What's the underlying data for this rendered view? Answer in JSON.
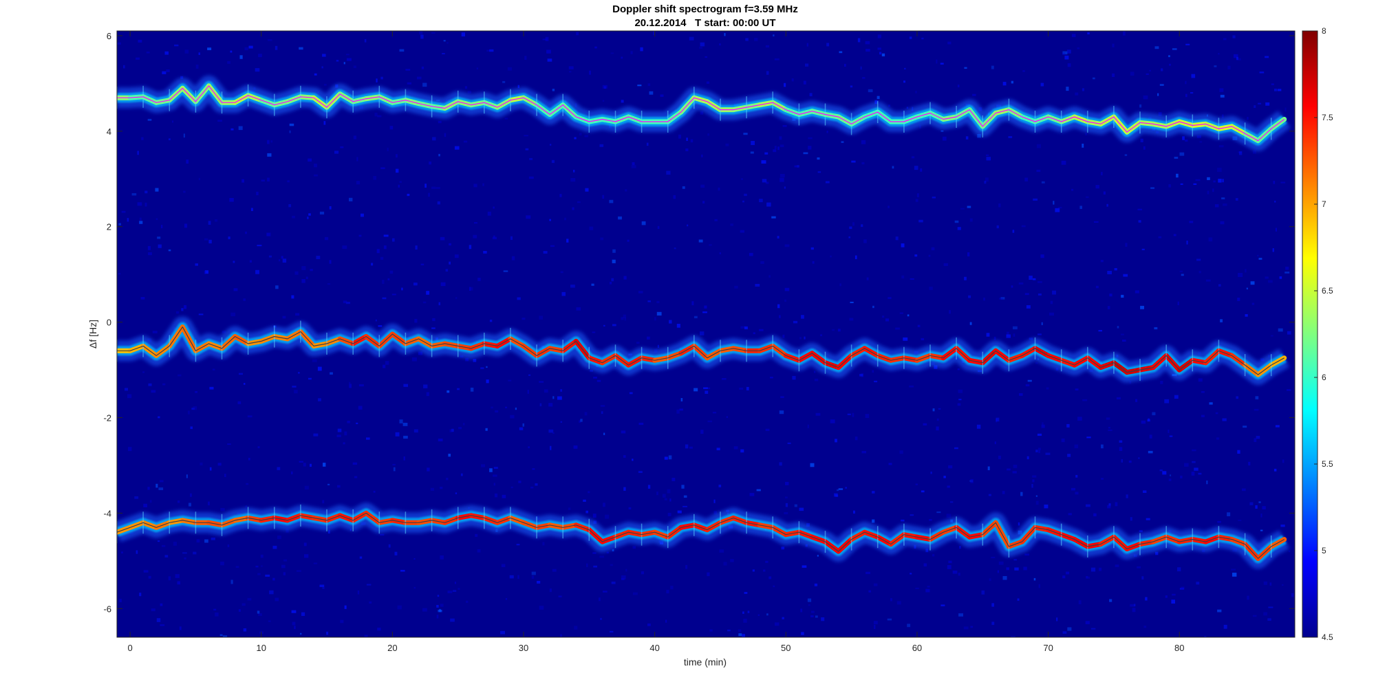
{
  "chart_data": {
    "type": "heatmap",
    "title": "Doppler shift spectrogram f=3.59 MHz",
    "subtitle": "20.12.2014   T start: 00:00 UT",
    "xlabel": "time (min)",
    "ylabel": "Δf [Hz]",
    "xlim": [
      -1,
      88.8
    ],
    "ylim": [
      -6.6,
      6.1
    ],
    "xticks": [
      0,
      10,
      20,
      30,
      40,
      50,
      60,
      70,
      80
    ],
    "xtick_labels": [
      "0",
      "10",
      "20",
      "30",
      "40",
      "50",
      "60",
      "70",
      "80"
    ],
    "yticks": [
      -6,
      -4,
      -2,
      0,
      2,
      4,
      6
    ],
    "ytick_labels": [
      "-6",
      "-4",
      "-2",
      "0",
      "2",
      "4",
      "6"
    ],
    "colorbar": {
      "range": [
        4.5,
        8
      ],
      "ticks": [
        4.5,
        5,
        5.5,
        6,
        6.5,
        7,
        7.5,
        8
      ],
      "tick_labels": [
        "4.5",
        "5",
        "5.5",
        "6",
        "6.5",
        "7",
        "7.5",
        "8"
      ],
      "colormap": "jet",
      "placement": "right"
    },
    "background_color": "#00008f",
    "traces": [
      {
        "band": "upper",
        "color": "#ff00ff",
        "x": [
          -1,
          0,
          1,
          2,
          3,
          4,
          5,
          6,
          7,
          8,
          9,
          10,
          11,
          12,
          13,
          14,
          15,
          16,
          17,
          18,
          19,
          20,
          21,
          22,
          23,
          24,
          25,
          26,
          27,
          28,
          29,
          30,
          31,
          32,
          33,
          34,
          35,
          36,
          37,
          38,
          39,
          40,
          41,
          42,
          43,
          44,
          45,
          46,
          47,
          48,
          49,
          50,
          51,
          52,
          53,
          54,
          55,
          56,
          57,
          58,
          59,
          60,
          61,
          62,
          63,
          64,
          65,
          66,
          67,
          68,
          69,
          70,
          71,
          72,
          73,
          74,
          75,
          76,
          77,
          78,
          79,
          80,
          81,
          82,
          83,
          84,
          85,
          86,
          87,
          88
        ],
        "y": [
          4.7,
          4.7,
          4.72,
          4.6,
          4.65,
          4.9,
          4.62,
          4.95,
          4.6,
          4.6,
          4.75,
          4.65,
          4.55,
          4.62,
          4.72,
          4.7,
          4.5,
          4.78,
          4.62,
          4.68,
          4.72,
          4.6,
          4.65,
          4.58,
          4.52,
          4.48,
          4.62,
          4.55,
          4.6,
          4.5,
          4.65,
          4.7,
          4.55,
          4.35,
          4.55,
          4.3,
          4.2,
          4.25,
          4.2,
          4.3,
          4.2,
          4.2,
          4.2,
          4.4,
          4.7,
          4.62,
          4.45,
          4.45,
          4.5,
          4.55,
          4.6,
          4.45,
          4.35,
          4.42,
          4.35,
          4.3,
          4.15,
          4.3,
          4.4,
          4.2,
          4.2,
          4.3,
          4.38,
          4.25,
          4.3,
          4.45,
          4.1,
          4.38,
          4.45,
          4.3,
          4.2,
          4.3,
          4.2,
          4.3,
          4.2,
          4.15,
          4.3,
          3.98,
          4.18,
          4.15,
          4.1,
          4.2,
          4.12,
          4.15,
          4.05,
          4.1,
          3.95,
          3.8,
          4.05,
          4.25
        ],
        "intensity": [
          6.4,
          6.2,
          6.0,
          6.3,
          6.1,
          6.5,
          6.2,
          6.3,
          6.4,
          6.3,
          6.6,
          6.2,
          6.1,
          6.3,
          6.2,
          6.4,
          6.5,
          6.3,
          6.2,
          6.2,
          6.4,
          6.1,
          6.2,
          6.3,
          6.1,
          6.2,
          6.4,
          6.2,
          6.3,
          6.1,
          6.5,
          6.4,
          6.2,
          6.0,
          6.2,
          6.1,
          6.0,
          6.1,
          6.0,
          6.2,
          6.0,
          6.1,
          6.0,
          6.2,
          6.3,
          6.5,
          6.3,
          6.4,
          6.2,
          6.3,
          6.5,
          6.2,
          6.0,
          6.2,
          6.1,
          6.2,
          6.2,
          6.1,
          6.0,
          6.1,
          6.0,
          6.1,
          6.0,
          6.2,
          6.3,
          6.1,
          6.2,
          6.3,
          6.4,
          6.1,
          6.0,
          6.2,
          6.2,
          6.4,
          6.5,
          6.3,
          6.6,
          6.4,
          6.5,
          6.3,
          6.5,
          6.4,
          6.6,
          6.5,
          6.4,
          6.7,
          6.3,
          6.2,
          6.1,
          6.3
        ]
      },
      {
        "band": "middle",
        "color": "#404040",
        "x": [
          -1,
          0,
          1,
          2,
          3,
          4,
          5,
          6,
          7,
          8,
          9,
          10,
          11,
          12,
          13,
          14,
          15,
          16,
          17,
          18,
          19,
          20,
          21,
          22,
          23,
          24,
          25,
          26,
          27,
          28,
          29,
          30,
          31,
          32,
          33,
          34,
          35,
          36,
          37,
          38,
          39,
          40,
          41,
          42,
          43,
          44,
          45,
          46,
          47,
          48,
          49,
          50,
          51,
          52,
          53,
          54,
          55,
          56,
          57,
          58,
          59,
          60,
          61,
          62,
          63,
          64,
          65,
          66,
          67,
          68,
          69,
          70,
          71,
          72,
          73,
          74,
          75,
          76,
          77,
          78,
          79,
          80,
          81,
          82,
          83,
          84,
          85,
          86,
          87,
          88
        ],
        "y": [
          -0.6,
          -0.6,
          -0.5,
          -0.7,
          -0.5,
          -0.1,
          -0.6,
          -0.45,
          -0.55,
          -0.3,
          -0.45,
          -0.4,
          -0.3,
          -0.35,
          -0.2,
          -0.5,
          -0.45,
          -0.35,
          -0.45,
          -0.3,
          -0.5,
          -0.25,
          -0.45,
          -0.35,
          -0.5,
          -0.45,
          -0.5,
          -0.55,
          -0.45,
          -0.5,
          -0.35,
          -0.5,
          -0.7,
          -0.55,
          -0.6,
          -0.4,
          -0.75,
          -0.85,
          -0.7,
          -0.9,
          -0.75,
          -0.8,
          -0.75,
          -0.65,
          -0.5,
          -0.75,
          -0.6,
          -0.55,
          -0.6,
          -0.6,
          -0.5,
          -0.7,
          -0.8,
          -0.65,
          -0.85,
          -0.95,
          -0.7,
          -0.55,
          -0.7,
          -0.8,
          -0.75,
          -0.8,
          -0.7,
          -0.75,
          -0.55,
          -0.8,
          -0.85,
          -0.6,
          -0.8,
          -0.7,
          -0.55,
          -0.7,
          -0.8,
          -0.9,
          -0.75,
          -0.95,
          -0.85,
          -1.05,
          -1.0,
          -0.95,
          -0.7,
          -1.0,
          -0.8,
          -0.85,
          -0.6,
          -0.7,
          -0.9,
          -1.1,
          -0.9,
          -0.75
        ],
        "intensity": [
          6.8,
          7.0,
          6.9,
          7.2,
          7.0,
          7.3,
          7.1,
          7.2,
          7.0,
          7.4,
          7.1,
          7.0,
          7.2,
          7.0,
          7.3,
          7.1,
          7.0,
          7.2,
          7.4,
          7.6,
          7.2,
          7.5,
          7.2,
          7.3,
          7.1,
          7.4,
          7.2,
          7.5,
          7.3,
          7.7,
          7.4,
          7.2,
          7.5,
          7.3,
          7.4,
          7.6,
          7.7,
          7.3,
          7.5,
          7.4,
          7.6,
          7.3,
          7.2,
          7.4,
          7.5,
          7.2,
          7.3,
          7.2,
          7.4,
          7.5,
          7.3,
          7.4,
          7.6,
          7.5,
          7.7,
          7.6,
          7.5,
          7.4,
          7.6,
          7.3,
          7.5,
          7.4,
          7.3,
          7.5,
          7.6,
          7.4,
          7.7,
          7.6,
          7.5,
          7.4,
          7.6,
          7.7,
          7.4,
          7.6,
          7.5,
          7.6,
          7.7,
          7.8,
          7.6,
          7.7,
          7.5,
          7.8,
          7.6,
          7.5,
          7.4,
          7.6,
          7.2,
          7.1,
          7.0,
          6.9
        ]
      },
      {
        "band": "lower",
        "color": "#404040",
        "x": [
          -1,
          0,
          1,
          2,
          3,
          4,
          5,
          6,
          7,
          8,
          9,
          10,
          11,
          12,
          13,
          14,
          15,
          16,
          17,
          18,
          19,
          20,
          21,
          22,
          23,
          24,
          25,
          26,
          27,
          28,
          29,
          30,
          31,
          32,
          33,
          34,
          35,
          36,
          37,
          38,
          39,
          40,
          41,
          42,
          43,
          44,
          45,
          46,
          47,
          48,
          49,
          50,
          51,
          52,
          53,
          54,
          55,
          56,
          57,
          58,
          59,
          60,
          61,
          62,
          63,
          64,
          65,
          66,
          67,
          68,
          69,
          70,
          71,
          72,
          73,
          74,
          75,
          76,
          77,
          78,
          79,
          80,
          81,
          82,
          83,
          84,
          85,
          86,
          87,
          88
        ],
        "y": [
          -4.4,
          -4.3,
          -4.2,
          -4.3,
          -4.2,
          -4.15,
          -4.2,
          -4.2,
          -4.25,
          -4.15,
          -4.1,
          -4.15,
          -4.1,
          -4.15,
          -4.05,
          -4.1,
          -4.15,
          -4.05,
          -4.15,
          -4.0,
          -4.2,
          -4.15,
          -4.2,
          -4.2,
          -4.15,
          -4.2,
          -4.1,
          -4.05,
          -4.1,
          -4.2,
          -4.1,
          -4.2,
          -4.3,
          -4.25,
          -4.3,
          -4.25,
          -4.35,
          -4.6,
          -4.5,
          -4.4,
          -4.45,
          -4.4,
          -4.5,
          -4.3,
          -4.25,
          -4.35,
          -4.2,
          -4.1,
          -4.2,
          -4.25,
          -4.3,
          -4.45,
          -4.4,
          -4.5,
          -4.6,
          -4.8,
          -4.55,
          -4.4,
          -4.5,
          -4.65,
          -4.45,
          -4.5,
          -4.55,
          -4.4,
          -4.3,
          -4.5,
          -4.45,
          -4.2,
          -4.7,
          -4.6,
          -4.3,
          -4.35,
          -4.45,
          -4.55,
          -4.7,
          -4.65,
          -4.5,
          -4.75,
          -4.65,
          -4.6,
          -4.5,
          -4.6,
          -4.55,
          -4.6,
          -4.5,
          -4.55,
          -4.65,
          -4.95,
          -4.7,
          -4.55
        ],
        "intensity": [
          7.0,
          7.1,
          7.0,
          7.2,
          7.1,
          7.0,
          7.3,
          7.2,
          7.4,
          7.1,
          7.3,
          7.4,
          7.5,
          7.6,
          7.4,
          7.5,
          7.3,
          7.6,
          7.4,
          7.5,
          7.3,
          7.4,
          7.5,
          7.2,
          7.4,
          7.3,
          7.5,
          7.6,
          7.4,
          7.5,
          7.3,
          7.2,
          7.4,
          7.3,
          7.2,
          7.4,
          7.5,
          7.6,
          7.5,
          7.4,
          7.5,
          7.3,
          7.4,
          7.5,
          7.6,
          7.4,
          7.5,
          7.3,
          7.6,
          7.4,
          7.3,
          7.5,
          7.4,
          7.6,
          7.5,
          7.7,
          7.5,
          7.4,
          7.6,
          7.5,
          7.4,
          7.6,
          7.5,
          7.3,
          7.4,
          7.6,
          7.5,
          7.2,
          7.4,
          7.3,
          7.5,
          7.4,
          7.6,
          7.5,
          7.7,
          7.5,
          7.4,
          7.6,
          7.5,
          7.4,
          7.3,
          7.5,
          7.4,
          7.6,
          7.5,
          7.4,
          7.3,
          7.5,
          7.2,
          7.3
        ]
      }
    ]
  }
}
